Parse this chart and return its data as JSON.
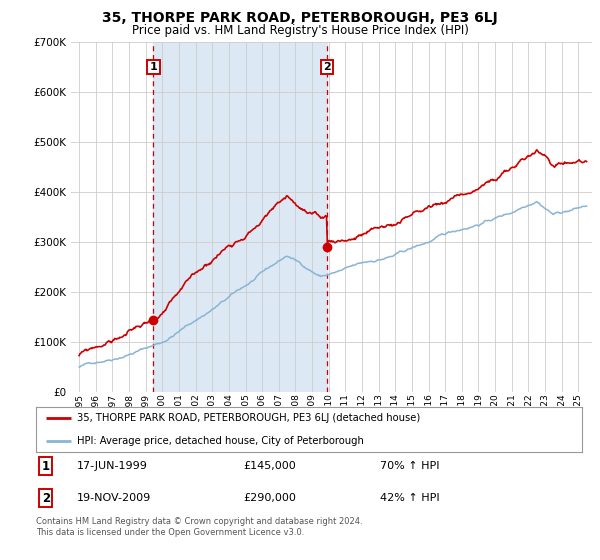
{
  "title": "35, THORPE PARK ROAD, PETERBOROUGH, PE3 6LJ",
  "subtitle": "Price paid vs. HM Land Registry's House Price Index (HPI)",
  "legend_line1": "35, THORPE PARK ROAD, PETERBOROUGH, PE3 6LJ (detached house)",
  "legend_line2": "HPI: Average price, detached house, City of Peterborough",
  "annotation1_date": "17-JUN-1999",
  "annotation1_price": "£145,000",
  "annotation1_hpi": "70% ↑ HPI",
  "annotation2_date": "19-NOV-2009",
  "annotation2_price": "£290,000",
  "annotation2_hpi": "42% ↑ HPI",
  "footnote": "Contains HM Land Registry data © Crown copyright and database right 2024.\nThis data is licensed under the Open Government Licence v3.0.",
  "sale1_year": 1999.46,
  "sale1_value": 145000,
  "sale2_year": 2009.89,
  "sale2_value": 290000,
  "red_color": "#cc0000",
  "blue_color": "#8ab4d4",
  "fill_color": "#dce9f5",
  "vline_color": "#cc0000",
  "grid_color": "#cccccc",
  "ylim": [
    0,
    700000
  ],
  "yticks": [
    0,
    100000,
    200000,
    300000,
    400000,
    500000,
    600000,
    700000
  ],
  "xlim_min": 1994.5,
  "xlim_max": 2025.8,
  "background_color": "#ffffff"
}
